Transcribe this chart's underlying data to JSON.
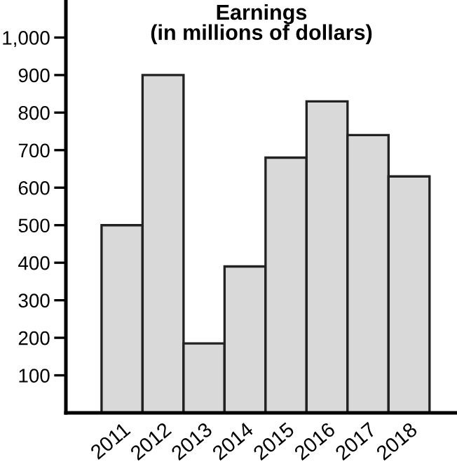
{
  "chart_data": {
    "type": "bar",
    "title": "Earnings\n(in millions of dollars)",
    "categories": [
      "2011",
      "2012",
      "2013",
      "2014",
      "2015",
      "2016",
      "2017",
      "2018"
    ],
    "values": [
      500,
      900,
      185,
      390,
      680,
      830,
      740,
      630
    ],
    "color": "#d9d9d9",
    "ylim": [
      0,
      1100
    ],
    "yticks": [
      {
        "value": 100,
        "label": "100"
      },
      {
        "value": 200,
        "label": "200"
      },
      {
        "value": 300,
        "label": "300"
      },
      {
        "value": 400,
        "label": "400"
      },
      {
        "value": 500,
        "label": "500"
      },
      {
        "value": 600,
        "label": "600"
      },
      {
        "value": 700,
        "label": "700"
      },
      {
        "value": 800,
        "label": "800"
      },
      {
        "value": 900,
        "label": "900"
      },
      {
        "value": 1000,
        "label": "1,000"
      }
    ],
    "grid": false
  }
}
